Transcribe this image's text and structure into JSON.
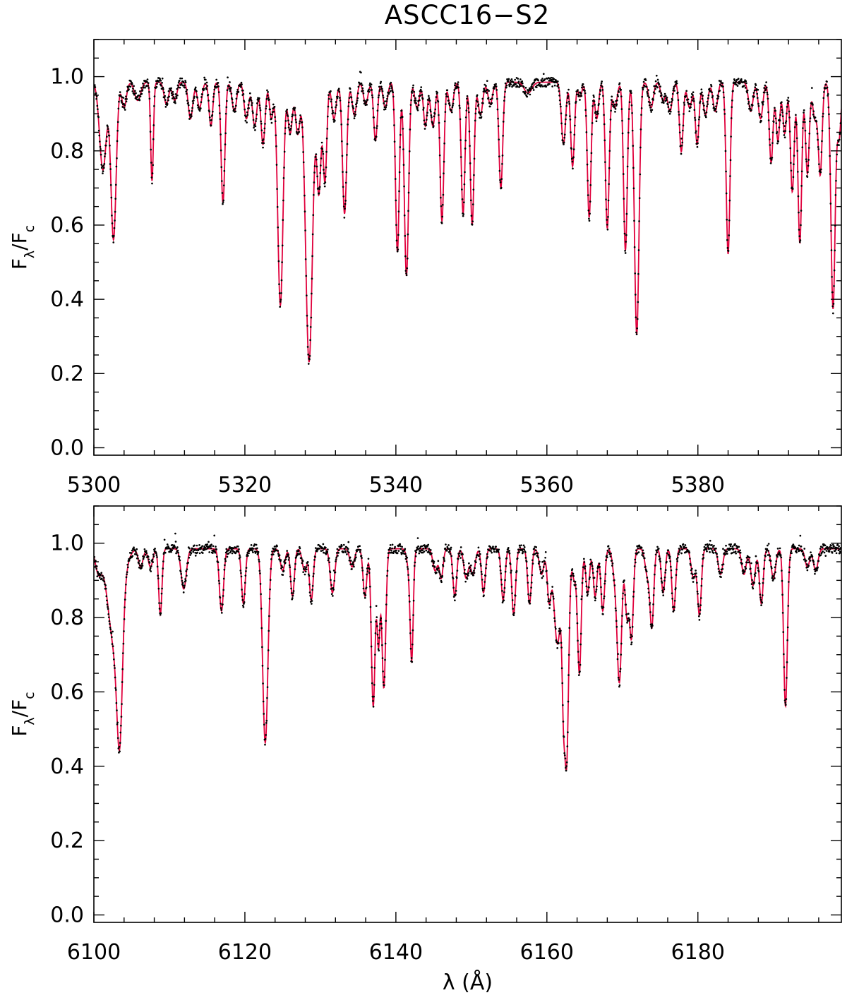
{
  "figure": {
    "title": "ASCC16−S2"
  },
  "colors": {
    "model": "#e0003c",
    "observed": "#000000",
    "axes": "#000000"
  },
  "chart_data": [
    {
      "type": "line",
      "xlabel": "",
      "ylabel_main": "F",
      "ylabel_sub1": "λ",
      "ylabel_sep": "/F",
      "ylabel_sub2": "c",
      "xlim": [
        5300,
        5399
      ],
      "ylim": [
        -0.02,
        1.1
      ],
      "xticks": [
        5300,
        5320,
        5340,
        5360,
        5380
      ],
      "yticks": [
        0.0,
        0.2,
        0.4,
        0.6,
        0.8,
        1.0
      ],
      "ytick_labels": [
        "0.0",
        "0.2",
        "0.4",
        "0.6",
        "0.8",
        "1.0"
      ],
      "x_minor_step": 4,
      "y_minor_step": 0.05,
      "series": [
        {
          "style": "line",
          "color": "#e0003c"
        },
        {
          "style": "points",
          "color": "#000000"
        }
      ],
      "lines": [
        [
          5301.2,
          0.76,
          0.45
        ],
        [
          5302.6,
          0.57,
          0.35
        ],
        [
          5304.0,
          0.93,
          0.3
        ],
        [
          5305.8,
          0.95,
          0.4
        ],
        [
          5307.7,
          0.73,
          0.18
        ],
        [
          5309.6,
          0.94,
          0.3
        ],
        [
          5310.7,
          0.95,
          0.3
        ],
        [
          5312.8,
          0.9,
          0.3
        ],
        [
          5314.0,
          0.93,
          0.3
        ],
        [
          5315.5,
          0.88,
          0.25
        ],
        [
          5317.1,
          0.67,
          0.25
        ],
        [
          5318.6,
          0.92,
          0.3
        ],
        [
          5320.2,
          0.9,
          0.3
        ],
        [
          5321.3,
          0.88,
          0.3
        ],
        [
          5322.4,
          0.83,
          0.28
        ],
        [
          5323.5,
          0.9,
          0.25
        ],
        [
          5324.7,
          0.39,
          0.35
        ],
        [
          5326.0,
          0.86,
          0.3
        ],
        [
          5327.0,
          0.86,
          0.3
        ],
        [
          5328.5,
          0.235,
          0.45
        ],
        [
          5329.8,
          0.7,
          0.28
        ],
        [
          5330.6,
          0.73,
          0.25
        ],
        [
          5331.8,
          0.9,
          0.3
        ],
        [
          5333.2,
          0.64,
          0.28
        ],
        [
          5334.5,
          0.91,
          0.3
        ],
        [
          5336.0,
          0.94,
          0.3
        ],
        [
          5337.3,
          0.84,
          0.25
        ],
        [
          5338.6,
          0.93,
          0.3
        ],
        [
          5340.2,
          0.535,
          0.25
        ],
        [
          5341.4,
          0.47,
          0.28
        ],
        [
          5342.8,
          0.93,
          0.3
        ],
        [
          5343.9,
          0.88,
          0.25
        ],
        [
          5344.9,
          0.88,
          0.3
        ],
        [
          5346.1,
          0.62,
          0.25
        ],
        [
          5347.3,
          0.92,
          0.3
        ],
        [
          5348.9,
          0.64,
          0.25
        ],
        [
          5350.1,
          0.61,
          0.25
        ],
        [
          5351.2,
          0.91,
          0.3
        ],
        [
          5352.5,
          0.94,
          0.3
        ],
        [
          5353.9,
          0.71,
          0.25
        ],
        [
          5357.5,
          0.97,
          0.5
        ],
        [
          5362.2,
          0.83,
          0.28
        ],
        [
          5363.4,
          0.77,
          0.25
        ],
        [
          5364.4,
          0.96,
          0.25
        ],
        [
          5365.6,
          0.63,
          0.25
        ],
        [
          5366.6,
          0.9,
          0.25
        ],
        [
          5368.0,
          0.6,
          0.25
        ],
        [
          5369.0,
          0.93,
          0.3
        ],
        [
          5370.4,
          0.54,
          0.25
        ],
        [
          5371.9,
          0.31,
          0.3
        ],
        [
          5373.8,
          0.93,
          0.3
        ],
        [
          5375.4,
          0.95,
          0.3
        ],
        [
          5376.3,
          0.92,
          0.3
        ],
        [
          5377.8,
          0.81,
          0.25
        ],
        [
          5378.9,
          0.93,
          0.3
        ],
        [
          5379.9,
          0.83,
          0.25
        ],
        [
          5381.0,
          0.91,
          0.3
        ],
        [
          5382.3,
          0.92,
          0.3
        ],
        [
          5384.0,
          0.53,
          0.25
        ],
        [
          5387.0,
          0.92,
          0.3
        ],
        [
          5388.3,
          0.9,
          0.3
        ],
        [
          5389.7,
          0.78,
          0.25
        ],
        [
          5390.6,
          0.84,
          0.25
        ],
        [
          5391.5,
          0.86,
          0.25
        ],
        [
          5392.5,
          0.7,
          0.25
        ],
        [
          5393.5,
          0.56,
          0.25
        ],
        [
          5394.5,
          0.75,
          0.25
        ],
        [
          5395.5,
          0.9,
          0.3
        ],
        [
          5396.2,
          0.75,
          0.25
        ],
        [
          5397.9,
          0.38,
          0.28
        ],
        [
          5398.7,
          0.85,
          0.25
        ]
      ]
    },
    {
      "type": "line",
      "xlabel": "λ (Å)",
      "ylabel_main": "F",
      "ylabel_sub1": "λ",
      "ylabel_sep": "/F",
      "ylabel_sub2": "c",
      "xlim": [
        6100,
        6199
      ],
      "ylim": [
        -0.02,
        1.1
      ],
      "xticks": [
        6100,
        6120,
        6140,
        6160,
        6180
      ],
      "yticks": [
        0.0,
        0.2,
        0.4,
        0.6,
        0.8,
        1.0
      ],
      "ytick_labels": [
        "0.0",
        "0.2",
        "0.4",
        "0.6",
        "0.8",
        "1.0"
      ],
      "x_minor_step": 4,
      "y_minor_step": 0.05,
      "series": [
        {
          "style": "line",
          "color": "#e0003c"
        },
        {
          "style": "points",
          "color": "#000000"
        }
      ],
      "lines": [
        [
          6100.6,
          0.94,
          0.4
        ],
        [
          6102.8,
          0.73,
          0.9
        ],
        [
          6103.4,
          0.575,
          0.35
        ],
        [
          6106.2,
          0.95,
          0.3
        ],
        [
          6107.5,
          0.95,
          0.3
        ],
        [
          6108.8,
          0.82,
          0.22
        ],
        [
          6111.9,
          0.89,
          0.35
        ],
        [
          6116.9,
          0.83,
          0.28
        ],
        [
          6119.8,
          0.85,
          0.25
        ],
        [
          6122.7,
          0.47,
          0.35
        ],
        [
          6125.0,
          0.94,
          0.3
        ],
        [
          6126.3,
          0.87,
          0.25
        ],
        [
          6127.9,
          0.94,
          0.3
        ],
        [
          6128.8,
          0.86,
          0.25
        ],
        [
          6131.6,
          0.88,
          0.3
        ],
        [
          6134.2,
          0.95,
          0.3
        ],
        [
          6135.9,
          0.87,
          0.25
        ],
        [
          6137.0,
          0.57,
          0.25
        ],
        [
          6137.7,
          0.74,
          0.2
        ],
        [
          6138.4,
          0.62,
          0.25
        ],
        [
          6141.8,
          0.94,
          0.3
        ],
        [
          6142.1,
          0.72,
          0.2
        ],
        [
          6145.2,
          0.94,
          0.3
        ],
        [
          6146.0,
          0.92,
          0.25
        ],
        [
          6147.8,
          0.87,
          0.25
        ],
        [
          6149.3,
          0.92,
          0.3
        ],
        [
          6150.2,
          0.93,
          0.3
        ],
        [
          6151.6,
          0.88,
          0.25
        ],
        [
          6154.2,
          0.86,
          0.25
        ],
        [
          6155.6,
          0.82,
          0.25
        ],
        [
          6157.7,
          0.85,
          0.25
        ],
        [
          6159.3,
          0.93,
          0.3
        ],
        [
          6160.3,
          0.86,
          0.25
        ],
        [
          6161.4,
          0.74,
          0.45
        ],
        [
          6162.2,
          0.66,
          0.2
        ],
        [
          6162.6,
          0.42,
          0.28
        ],
        [
          6163.6,
          0.92,
          0.25
        ],
        [
          6164.3,
          0.66,
          0.25
        ],
        [
          6165.4,
          0.88,
          0.25
        ],
        [
          6166.4,
          0.87,
          0.25
        ],
        [
          6167.4,
          0.83,
          0.25
        ],
        [
          6169.0,
          0.93,
          0.3
        ],
        [
          6169.6,
          0.64,
          0.3
        ],
        [
          6170.6,
          0.82,
          0.25
        ],
        [
          6171.2,
          0.76,
          0.25
        ],
        [
          6173.3,
          0.93,
          0.3
        ],
        [
          6173.9,
          0.79,
          0.25
        ],
        [
          6175.4,
          0.88,
          0.25
        ],
        [
          6176.8,
          0.83,
          0.25
        ],
        [
          6179.4,
          0.92,
          0.3
        ],
        [
          6180.2,
          0.82,
          0.25
        ],
        [
          6183.0,
          0.93,
          0.3
        ],
        [
          6186.1,
          0.93,
          0.3
        ],
        [
          6187.3,
          0.9,
          0.3
        ],
        [
          6188.4,
          0.85,
          0.25
        ],
        [
          6190.0,
          0.92,
          0.3
        ],
        [
          6191.6,
          0.57,
          0.25
        ],
        [
          6194.5,
          0.95,
          0.3
        ],
        [
          6195.6,
          0.94,
          0.3
        ]
      ]
    }
  ]
}
